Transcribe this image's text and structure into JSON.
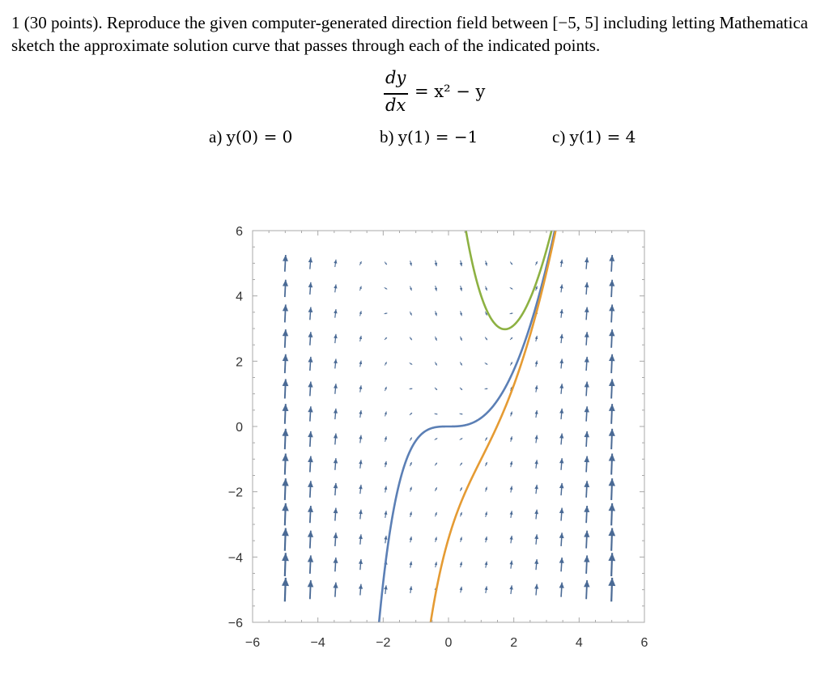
{
  "problem": {
    "text": "1 (30 points). Reproduce the given computer-generated direction field between [−5, 5] including letting Mathematica sketch the approximate solution curve that passes through each of the indicated points."
  },
  "equation": {
    "numerator": "dy",
    "denominator": "dx",
    "rhs": "= x² − y"
  },
  "parts": [
    {
      "label": "a)",
      "condition": "y(0) = 0"
    },
    {
      "label": "b)",
      "condition": "y(1) = −1"
    },
    {
      "label": "c)",
      "condition": "y(1) = 4"
    }
  ],
  "chart_data": {
    "type": "scatter",
    "title": "",
    "xlabel": "",
    "ylabel": "",
    "xlim": [
      -6,
      6
    ],
    "ylim": [
      -6,
      6
    ],
    "x_ticks": [
      "−6",
      "−4",
      "−2",
      "0",
      "2",
      "4",
      "6"
    ],
    "y_ticks": [
      "6",
      "4",
      "2",
      "0",
      "−2",
      "−4",
      "−6"
    ],
    "grid": false,
    "direction_field": {
      "equation": "dy/dx = x^2 - y",
      "x_range": [
        -5,
        5
      ],
      "y_range": [
        -5,
        5
      ],
      "arrows_per_axis": 14,
      "color": "#4a6a95"
    },
    "series": [
      {
        "initial_condition": [
          0,
          0
        ],
        "color": "#5b7fb5"
      },
      {
        "initial_condition": [
          1,
          -1
        ],
        "color": "#e59b33"
      },
      {
        "initial_condition": [
          1,
          4
        ],
        "color": "#8db142"
      }
    ]
  }
}
